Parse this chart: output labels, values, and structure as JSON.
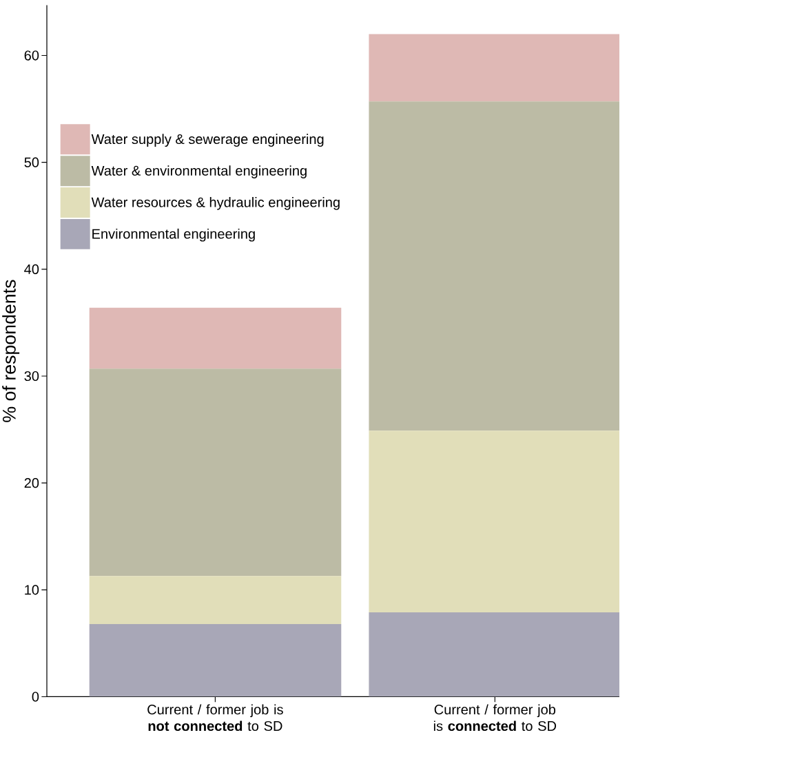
{
  "chart_data": {
    "type": "bar",
    "stacked": true,
    "ylabel": "% of respondents",
    "categories": [
      "Current / former job is **not connected** to SD",
      "Current / former job is **connected** to SD"
    ],
    "series": [
      {
        "name": "Environmental engineering",
        "color": "#a8a7b7",
        "values": [
          6.8,
          7.9
        ]
      },
      {
        "name": "Water resources & hydraulic engineering",
        "color": "#e1deb9",
        "values": [
          4.5,
          17.0
        ]
      },
      {
        "name": "Water & environmental engineering",
        "color": "#bcbba5",
        "values": [
          19.4,
          30.8
        ]
      },
      {
        "name": "Water supply & sewerage engineering",
        "color": "#dfb8b5",
        "values": [
          5.7,
          6.3
        ]
      }
    ],
    "ylim": [
      0,
      64.7
    ],
    "yticks": [
      0,
      10,
      20,
      30,
      40,
      50,
      60
    ],
    "legend": "top left"
  }
}
